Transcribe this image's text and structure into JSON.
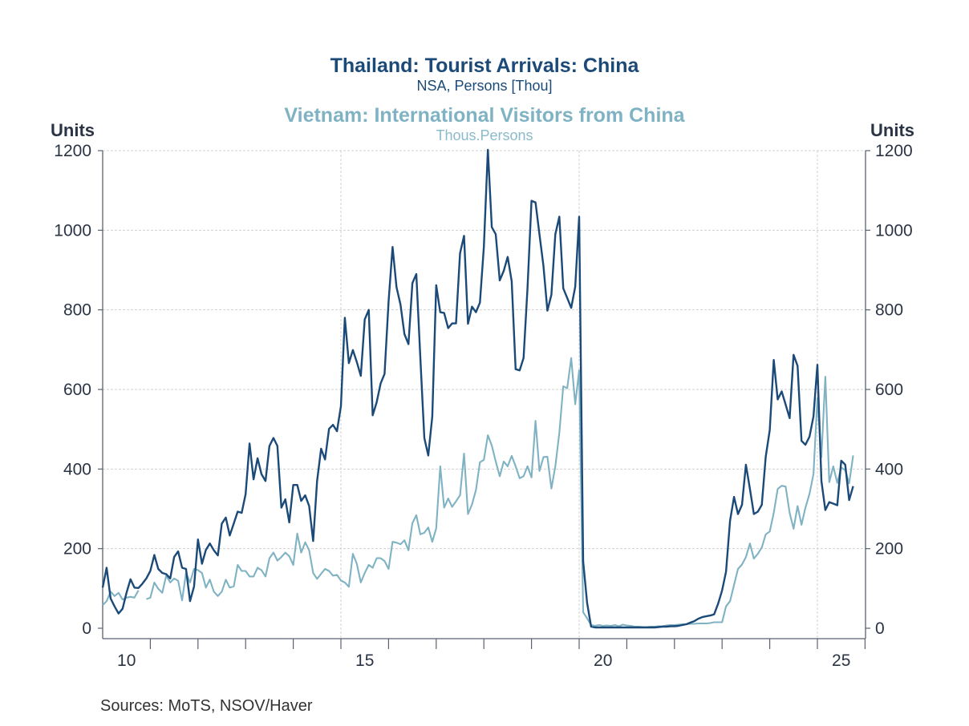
{
  "chart_data": {
    "type": "line",
    "title": "Thailand: Tourist Arrivals: China",
    "subtitle": "NSA, Persons [Thou]",
    "title2": "Vietnam: International Visitors from China",
    "subtitle2": "Thous.Persons",
    "ylabel_left": "Units",
    "ylabel_right": "Units",
    "ylim": [
      0,
      1200
    ],
    "yticks": [
      "0",
      "200",
      "400",
      "600",
      "800",
      "1000",
      "1200"
    ],
    "ytick_values": [
      0,
      200,
      400,
      600,
      800,
      1000,
      1200
    ],
    "xticks": [
      "10",
      "15",
      "20",
      "25"
    ],
    "xtick_years": [
      2010,
      2015,
      2020,
      2025
    ],
    "x_start": "2010-01",
    "x_frequency": "monthly",
    "x_end": "2025-10",
    "grid": true,
    "source": "Sources:  MoTS, NSOV/Haver",
    "series": [
      {
        "name": "Thailand: Tourist Arrivals: China",
        "color": "#1b4a78",
        "values": [
          102,
          152,
          75,
          55,
          37,
          49,
          89,
          123,
          102,
          101,
          112,
          125,
          144,
          184,
          149,
          139,
          136,
          125,
          179,
          193,
          152,
          149,
          68,
          105,
          223,
          162,
          197,
          213,
          196,
          183,
          263,
          278,
          233,
          263,
          293,
          290,
          337,
          464,
          374,
          427,
          387,
          370,
          458,
          478,
          458,
          303,
          324,
          266,
          360,
          360,
          320,
          334,
          307,
          219,
          370,
          451,
          424,
          501,
          511,
          495,
          558,
          780,
          666,
          699,
          669,
          634,
          776,
          800,
          535,
          568,
          615,
          639,
          820,
          958,
          857,
          813,
          739,
          714,
          867,
          890,
          680,
          478,
          434,
          532,
          862,
          794,
          792,
          754,
          766,
          766,
          942,
          986,
          765,
          808,
          794,
          818,
          958,
          1202,
          1008,
          990,
          874,
          898,
          933,
          872,
          651,
          648,
          679,
          854,
          1074,
          1070,
          990,
          910,
          798,
          838,
          990,
          1034,
          854,
          830,
          805,
          858,
          1034,
          168,
          64,
          4,
          2,
          2,
          2,
          2,
          2,
          2,
          2,
          2,
          2,
          2,
          2,
          2,
          2,
          2,
          2,
          2,
          3,
          4,
          4,
          5,
          5,
          6,
          8,
          10,
          14,
          18,
          24,
          28,
          30,
          32,
          35,
          62,
          95,
          142,
          270,
          330,
          287,
          310,
          411,
          350,
          287,
          293,
          310,
          431,
          498,
          674,
          575,
          595,
          562,
          528,
          687,
          659,
          471,
          461,
          481,
          532,
          662,
          370,
          297,
          317,
          313,
          309,
          421,
          411,
          322,
          357
        ]
      },
      {
        "name": "Vietnam: International Visitors from China",
        "color": "#7fb2c3",
        "values": [
          58,
          68,
          92,
          81,
          89,
          72,
          77,
          79,
          77,
          95,
          null,
          73,
          77,
          115,
          99,
          89,
          132,
          115,
          125,
          119,
          70,
          139,
          115,
          149,
          146,
          139,
          102,
          122,
          92,
          81,
          92,
          122,
          102,
          105,
          159,
          144,
          144,
          130,
          130,
          152,
          146,
          130,
          176,
          190,
          170,
          179,
          190,
          181,
          159,
          238,
          190,
          216,
          196,
          139,
          124,
          137,
          149,
          144,
          132,
          134,
          120,
          115,
          104,
          187,
          162,
          115,
          139,
          159,
          152,
          176,
          176,
          169,
          149,
          217,
          215,
          211,
          221,
          196,
          264,
          284,
          236,
          240,
          253,
          217,
          251,
          407,
          303,
          326,
          305,
          319,
          334,
          439,
          287,
          311,
          347,
          417,
          423,
          485,
          459,
          419,
          382,
          419,
          407,
          433,
          407,
          377,
          382,
          407,
          379,
          521,
          395,
          430,
          431,
          351,
          407,
          491,
          608,
          603,
          679,
          563,
          648,
          40,
          25,
          8,
          6,
          8,
          6,
          7,
          6,
          8,
          5,
          9,
          7,
          6,
          4,
          4,
          3,
          3,
          4,
          4,
          5,
          5,
          7,
          8,
          8,
          9,
          10,
          10,
          11,
          11,
          12,
          12,
          12,
          13,
          15,
          15,
          15,
          55,
          68,
          109,
          149,
          160,
          179,
          213,
          175,
          187,
          203,
          236,
          243,
          290,
          350,
          358,
          356,
          290,
          250,
          307,
          260,
          303,
          337,
          387,
          578,
          430,
          632,
          367,
          407,
          365,
          404,
          397,
          364,
          434
        ]
      }
    ]
  }
}
